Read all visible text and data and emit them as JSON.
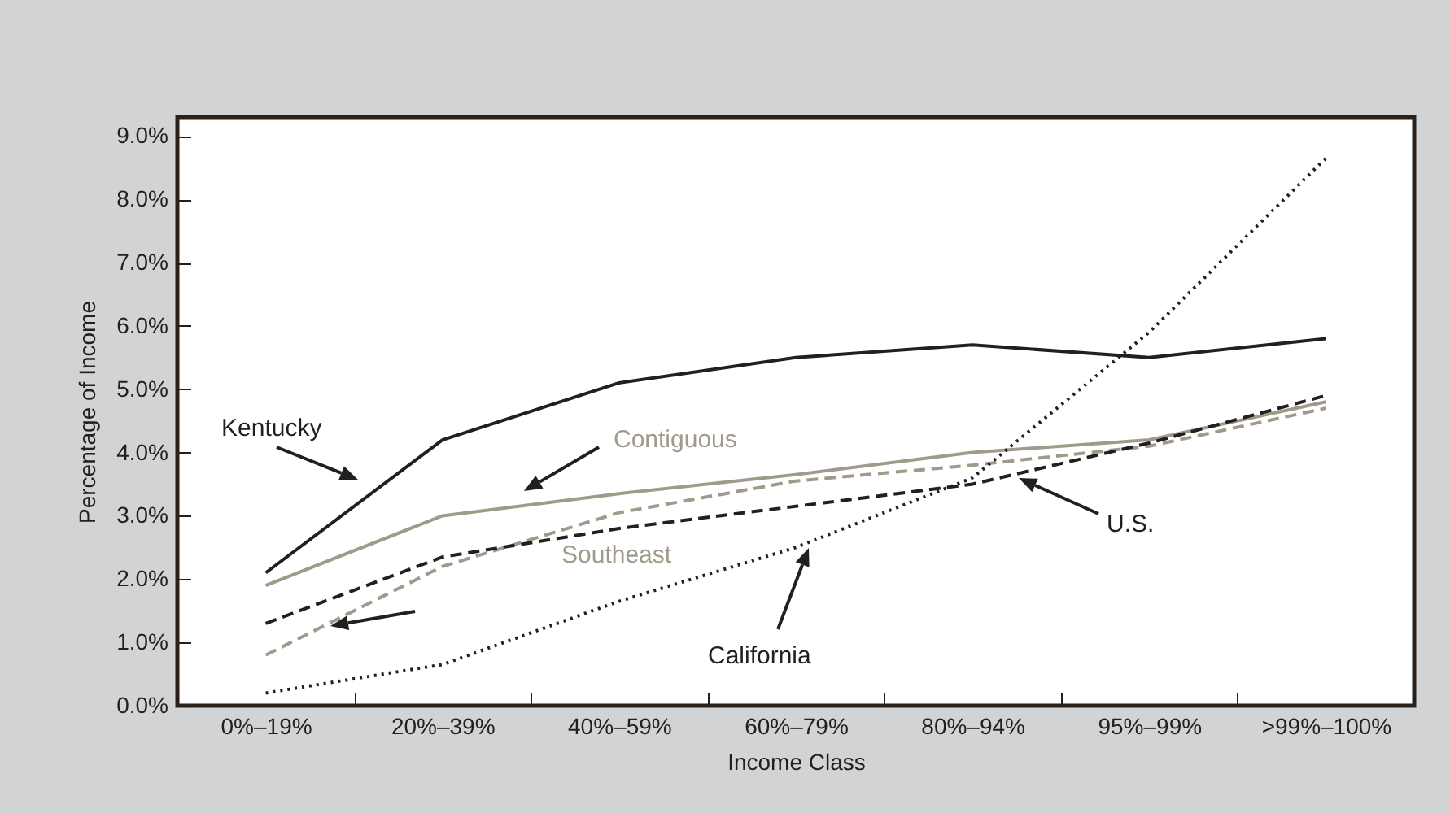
{
  "chart_data": {
    "type": "line",
    "xlabel": "Income Class",
    "ylabel": "Percentage of Income",
    "categories": [
      "0%–19%",
      "20%–39%",
      "40%–59%",
      "60%–79%",
      "80%–94%",
      "95%–99%",
      ">99%–100%"
    ],
    "series": [
      {
        "name": "Kentucky",
        "color": "#231f20",
        "line_style": "solid",
        "values": [
          2.1,
          4.2,
          5.1,
          5.5,
          5.7,
          5.5,
          5.8
        ]
      },
      {
        "name": "Contiguous",
        "color": "#a09a8a",
        "line_style": "solid",
        "values": [
          1.9,
          3.0,
          3.35,
          3.65,
          4.0,
          4.2,
          4.8
        ]
      },
      {
        "name": "Southeast",
        "color": "#a09a8a",
        "line_style": "dashed",
        "values": [
          0.8,
          2.2,
          3.05,
          3.55,
          3.8,
          4.1,
          4.7
        ]
      },
      {
        "name": "U.S.",
        "color": "#231f20",
        "line_style": "dashed",
        "values": [
          1.3,
          2.35,
          2.8,
          3.15,
          3.5,
          4.15,
          4.9
        ]
      },
      {
        "name": "California",
        "color": "#231f20",
        "line_style": "dotted",
        "values": [
          0.2,
          0.65,
          1.65,
          2.5,
          3.6,
          5.9,
          8.65
        ]
      }
    ],
    "ylim": [
      0,
      9.3
    ],
    "yticks": [
      {
        "value": 0,
        "label": "0.0%"
      },
      {
        "value": 1,
        "label": "1.0%"
      },
      {
        "value": 2,
        "label": "2.0%"
      },
      {
        "value": 3,
        "label": "3.0%"
      },
      {
        "value": 4,
        "label": "4.0%"
      },
      {
        "value": 5,
        "label": "5.0%"
      },
      {
        "value": 6,
        "label": "6.0%"
      },
      {
        "value": 7,
        "label": "7.0%"
      },
      {
        "value": 8,
        "label": "8.0%"
      },
      {
        "value": 9,
        "label": "9.0%"
      }
    ],
    "grid": false,
    "legend": false,
    "marker": "none"
  }
}
